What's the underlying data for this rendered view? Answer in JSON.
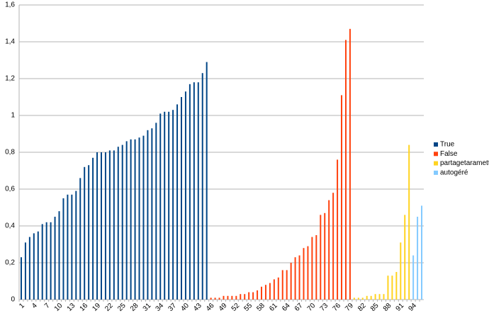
{
  "chart_data": {
    "type": "bar",
    "categories": [
      "1",
      null,
      null,
      "4",
      null,
      null,
      "7",
      null,
      null,
      "10",
      null,
      null,
      "13",
      null,
      null,
      "16",
      null,
      null,
      "19",
      null,
      null,
      "22",
      null,
      null,
      "25",
      null,
      null,
      "28",
      null,
      null,
      "31",
      null,
      null,
      "34",
      null,
      null,
      "37",
      null,
      null,
      "40",
      null,
      null,
      "43",
      null,
      null,
      "46",
      null,
      null,
      "49",
      null,
      null,
      "52",
      null,
      null,
      "55",
      null,
      null,
      "58",
      null,
      null,
      "61",
      null,
      null,
      "64",
      null,
      null,
      "67",
      null,
      null,
      "70",
      null,
      null,
      "73",
      null,
      null,
      "76",
      null,
      null,
      "79",
      null,
      null,
      "82",
      null,
      null,
      "85",
      null,
      null,
      "88",
      null,
      null,
      "91",
      null,
      null,
      "94",
      null,
      null
    ],
    "series": [
      {
        "name": "True",
        "color": "#004586",
        "values": [
          0.23,
          0.31,
          0.34,
          0.36,
          0.37,
          0.41,
          0.42,
          0.42,
          0.45,
          0.48,
          0.55,
          0.57,
          0.57,
          0.59,
          0.66,
          0.72,
          0.73,
          0.77,
          0.8,
          0.8,
          0.8,
          0.81,
          0.81,
          0.83,
          0.84,
          0.86,
          0.87,
          0.87,
          0.88,
          0.89,
          0.92,
          0.93,
          0.96,
          1.01,
          1.02,
          1.02,
          1.03,
          1.06,
          1.1,
          1.13,
          1.17,
          1.18,
          1.18,
          1.23,
          1.29,
          null,
          null,
          null,
          null,
          null,
          null,
          null,
          null,
          null,
          null,
          null,
          null,
          null,
          null,
          null,
          null,
          null,
          null,
          null,
          null,
          null,
          null,
          null,
          null,
          null,
          null,
          null,
          null,
          null,
          null,
          null,
          null,
          null,
          null,
          null,
          null,
          null,
          null,
          null,
          null,
          null,
          null,
          null,
          null,
          null,
          null,
          null,
          null,
          null,
          null,
          null
        ]
      },
      {
        "name": "False",
        "color": "#ff420e",
        "values": [
          null,
          null,
          null,
          null,
          null,
          null,
          null,
          null,
          null,
          null,
          null,
          null,
          null,
          null,
          null,
          null,
          null,
          null,
          null,
          null,
          null,
          null,
          null,
          null,
          null,
          null,
          null,
          null,
          null,
          null,
          null,
          null,
          null,
          null,
          null,
          null,
          null,
          null,
          null,
          null,
          null,
          null,
          null,
          null,
          null,
          0.01,
          0.01,
          0.01,
          0.02,
          0.02,
          0.02,
          0.02,
          0.03,
          0.03,
          0.04,
          0.04,
          0.05,
          0.07,
          0.08,
          0.09,
          0.11,
          0.12,
          0.16,
          0.16,
          0.2,
          0.23,
          0.24,
          0.28,
          0.29,
          0.34,
          0.35,
          0.46,
          0.47,
          0.54,
          0.58,
          0.76,
          1.11,
          1.41,
          1.47,
          null,
          null,
          null,
          null,
          null,
          null,
          null,
          null,
          null,
          null,
          null,
          null,
          null,
          null,
          null,
          null,
          null
        ]
      },
      {
        "name": "partagetaramette",
        "color": "#ffd320",
        "values": [
          null,
          null,
          null,
          null,
          null,
          null,
          null,
          null,
          null,
          null,
          null,
          null,
          null,
          null,
          null,
          null,
          null,
          null,
          null,
          null,
          null,
          null,
          null,
          null,
          null,
          null,
          null,
          null,
          null,
          null,
          null,
          null,
          null,
          null,
          null,
          null,
          null,
          null,
          null,
          null,
          null,
          null,
          null,
          null,
          null,
          null,
          null,
          null,
          null,
          null,
          null,
          null,
          null,
          null,
          null,
          null,
          null,
          null,
          null,
          null,
          null,
          null,
          null,
          null,
          null,
          null,
          null,
          null,
          null,
          null,
          null,
          null,
          null,
          null,
          null,
          null,
          null,
          null,
          null,
          0.01,
          0.01,
          0.01,
          0.02,
          0.02,
          0.03,
          0.03,
          0.03,
          0.13,
          0.13,
          0.15,
          0.31,
          0.46,
          0.84,
          null,
          null,
          null
        ]
      },
      {
        "name": "autogéré",
        "color": "#83caff",
        "values": [
          null,
          null,
          null,
          null,
          null,
          null,
          null,
          null,
          null,
          null,
          null,
          null,
          null,
          null,
          null,
          null,
          null,
          null,
          null,
          null,
          null,
          null,
          null,
          null,
          null,
          null,
          null,
          null,
          null,
          null,
          null,
          null,
          null,
          null,
          null,
          null,
          null,
          null,
          null,
          null,
          null,
          null,
          null,
          null,
          null,
          null,
          null,
          null,
          null,
          null,
          null,
          null,
          null,
          null,
          null,
          null,
          null,
          null,
          null,
          null,
          null,
          null,
          null,
          null,
          null,
          null,
          null,
          null,
          null,
          null,
          null,
          null,
          null,
          null,
          null,
          null,
          null,
          null,
          null,
          null,
          null,
          null,
          null,
          null,
          null,
          null,
          null,
          null,
          null,
          null,
          null,
          null,
          null,
          0.24,
          0.45,
          0.51
        ]
      }
    ],
    "ylim": [
      0,
      1.6
    ],
    "yticks": [
      0,
      {
        "value": 0.2,
        "label": "0,2"
      },
      {
        "value": 0.4,
        "label": "0,4"
      },
      {
        "value": 0.6,
        "label": "0,6"
      },
      {
        "value": 0.8,
        "label": "0,8"
      },
      1,
      {
        "value": 1.2,
        "label": "1,2"
      },
      {
        "value": 1.4,
        "label": "1,4"
      },
      {
        "value": 1.6,
        "label": "1,6"
      }
    ],
    "grid": true,
    "legend": "right"
  }
}
